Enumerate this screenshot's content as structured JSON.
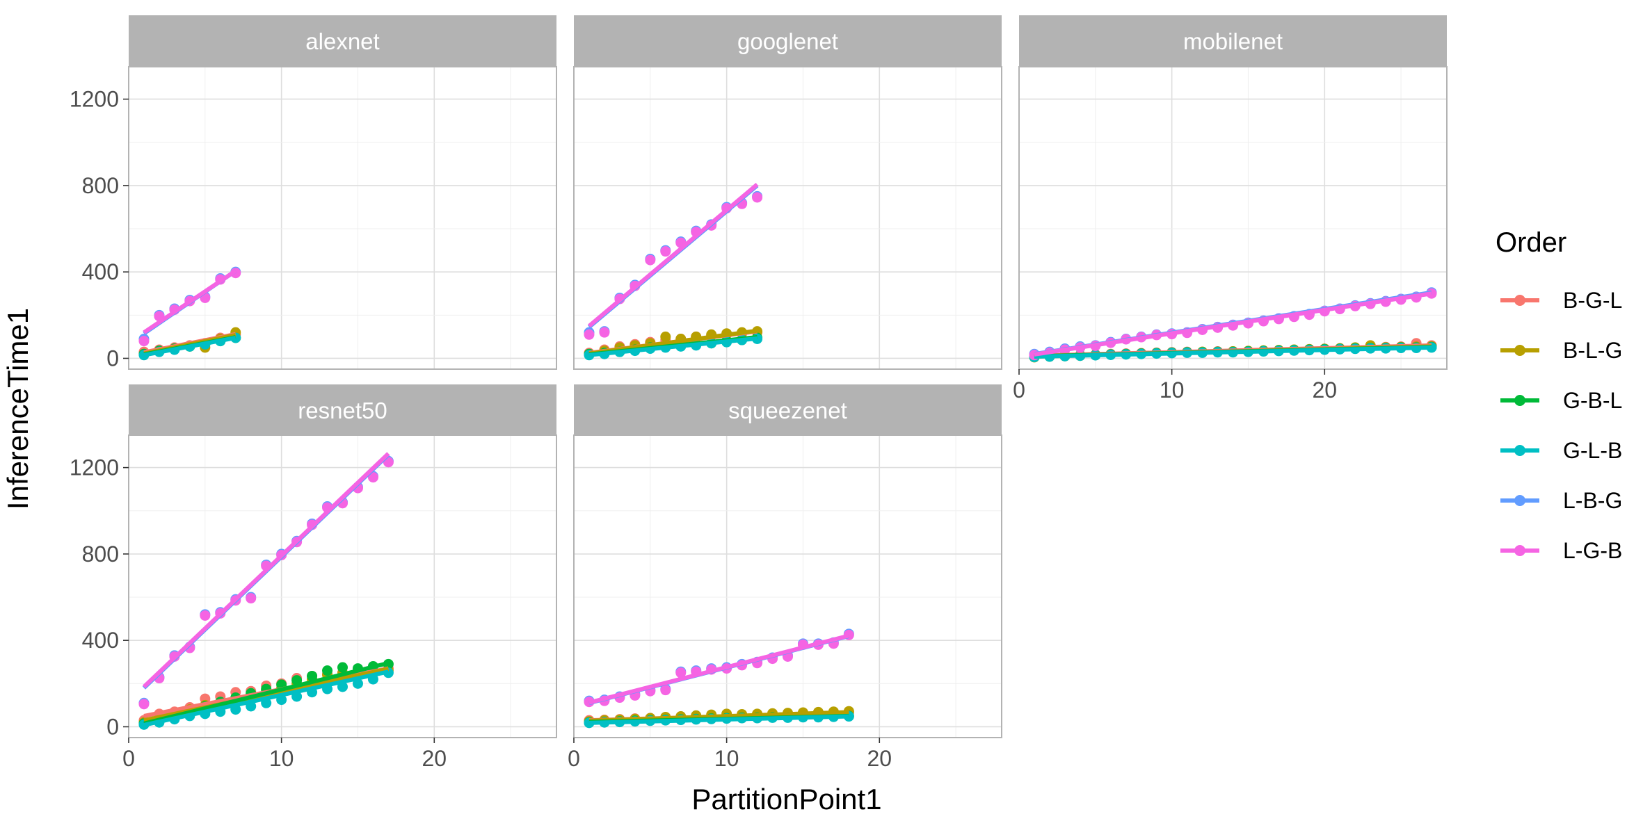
{
  "chart_data": {
    "type": "scatter",
    "facet_by": "model",
    "xlabel": "PartitionPoint1",
    "ylabel": "InferenceTime1",
    "xlim": [
      0,
      28
    ],
    "ylim": [
      -50,
      1350
    ],
    "x_ticks": [
      0,
      10,
      20
    ],
    "y_ticks": [
      0,
      400,
      800,
      1200
    ],
    "grid": true,
    "legend": {
      "title": "Order",
      "placement": "right",
      "entries": [
        "B-G-L",
        "B-L-G",
        "G-B-L",
        "G-L-B",
        "L-B-G",
        "L-G-B"
      ]
    },
    "colors": {
      "B-G-L": "#F8766D",
      "B-L-G": "#B79F00",
      "G-B-L": "#00BA38",
      "G-L-B": "#00BFC4",
      "L-B-G": "#619CFF",
      "L-G-B": "#F564E3"
    },
    "panels": [
      {
        "title": "alexnet",
        "x": [
          1,
          2,
          3,
          4,
          5,
          6,
          7
        ],
        "series": [
          {
            "name": "B-G-L",
            "values": [
              30,
              40,
              50,
              60,
              70,
              95,
              110
            ],
            "fit": [
              [
                1,
                28
              ],
              [
                7,
                112
              ]
            ]
          },
          {
            "name": "B-L-G",
            "values": [
              20,
              35,
              45,
              55,
              50,
              90,
              120
            ],
            "fit": [
              [
                1,
                22
              ],
              [
                7,
                108
              ]
            ]
          },
          {
            "name": "G-B-L",
            "values": [
              20,
              35,
              45,
              55,
              65,
              80,
              95
            ],
            "fit": [
              [
                1,
                18
              ],
              [
                7,
                98
              ]
            ]
          },
          {
            "name": "G-L-B",
            "values": [
              15,
              30,
              40,
              55,
              65,
              80,
              95
            ],
            "fit": [
              [
                1,
                15
              ],
              [
                7,
                95
              ]
            ]
          },
          {
            "name": "L-B-G",
            "values": [
              90,
              200,
              230,
              270,
              285,
              370,
              400
            ],
            "fit": [
              [
                1,
                115
              ],
              [
                7,
                405
              ]
            ]
          },
          {
            "name": "L-G-B",
            "values": [
              80,
              195,
              225,
              265,
              280,
              365,
              395
            ],
            "fit": [
              [
                1,
                120
              ],
              [
                7,
                405
              ]
            ]
          }
        ]
      },
      {
        "title": "googlenet",
        "x": [
          1,
          2,
          3,
          4,
          5,
          6,
          7,
          8,
          9,
          10,
          11,
          12
        ],
        "series": [
          {
            "name": "B-G-L",
            "values": [
              25,
              40,
              55,
              65,
              75,
              85,
              90,
              100,
              105,
              110,
              115,
              120
            ],
            "fit": [
              [
                1,
                25
              ],
              [
                12,
                125
              ]
            ]
          },
          {
            "name": "B-L-G",
            "values": [
              20,
              35,
              50,
              60,
              70,
              100,
              90,
              100,
              110,
              115,
              120,
              125
            ],
            "fit": [
              [
                1,
                22
              ],
              [
                12,
                128
              ]
            ]
          },
          {
            "name": "G-B-L",
            "values": [
              20,
              25,
              30,
              40,
              50,
              55,
              60,
              65,
              70,
              80,
              85,
              95
            ],
            "fit": [
              [
                1,
                18
              ],
              [
                12,
                98
              ]
            ]
          },
          {
            "name": "G-L-B",
            "values": [
              15,
              20,
              30,
              35,
              45,
              50,
              55,
              60,
              70,
              75,
              85,
              90
            ],
            "fit": [
              [
                1,
                15
              ],
              [
                12,
                92
              ]
            ]
          },
          {
            "name": "L-B-G",
            "values": [
              120,
              125,
              280,
              340,
              460,
              500,
              540,
              590,
              620,
              700,
              720,
              750
            ],
            "fit": [
              [
                1,
                145
              ],
              [
                12,
                800
              ]
            ]
          },
          {
            "name": "L-G-B",
            "values": [
              110,
              120,
              275,
              335,
              455,
              495,
              535,
              585,
              615,
              695,
              715,
              745
            ],
            "fit": [
              [
                1,
                150
              ],
              [
                12,
                805
              ]
            ]
          }
        ]
      },
      {
        "title": "mobilenet",
        "x": [
          1,
          2,
          3,
          4,
          5,
          6,
          7,
          8,
          9,
          10,
          11,
          12,
          13,
          14,
          15,
          16,
          17,
          18,
          19,
          20,
          21,
          22,
          23,
          24,
          25,
          26,
          27
        ],
        "series": [
          {
            "name": "B-G-L",
            "values": [
              10,
              12,
              14,
              16,
              18,
              20,
              22,
              24,
              26,
              28,
              30,
              30,
              32,
              32,
              34,
              36,
              38,
              40,
              42,
              44,
              46,
              48,
              50,
              52,
              54,
              70,
              60
            ],
            "fit": [
              [
                1,
                12
              ],
              [
                27,
                60
              ]
            ]
          },
          {
            "name": "B-L-G",
            "values": [
              5,
              8,
              10,
              12,
              15,
              18,
              20,
              22,
              24,
              26,
              28,
              30,
              30,
              32,
              34,
              36,
              38,
              40,
              42,
              44,
              46,
              50,
              60,
              50,
              52,
              54,
              55
            ],
            "fit": [
              [
                1,
                8
              ],
              [
                27,
                55
              ]
            ]
          },
          {
            "name": "G-B-L",
            "values": [
              8,
              10,
              12,
              14,
              16,
              18,
              20,
              22,
              24,
              26,
              28,
              28,
              30,
              30,
              32,
              34,
              36,
              38,
              40,
              42,
              44,
              46,
              48,
              48,
              50,
              50,
              52
            ],
            "fit": [
              [
                1,
                10
              ],
              [
                27,
                52
              ]
            ]
          },
          {
            "name": "G-L-B",
            "values": [
              6,
              8,
              10,
              12,
              14,
              16,
              18,
              20,
              22,
              24,
              26,
              26,
              28,
              28,
              30,
              32,
              34,
              36,
              38,
              40,
              42,
              44,
              46,
              46,
              48,
              48,
              50
            ],
            "fit": [
              [
                1,
                8
              ],
              [
                27,
                50
              ]
            ]
          },
          {
            "name": "L-B-G",
            "values": [
              20,
              30,
              45,
              55,
              60,
              75,
              90,
              100,
              110,
              115,
              120,
              135,
              145,
              155,
              165,
              175,
              185,
              195,
              205,
              220,
              230,
              245,
              255,
              265,
              275,
              285,
              305
            ],
            "fit": [
              [
                1,
                20
              ],
              [
                27,
                305
              ]
            ]
          },
          {
            "name": "L-G-B",
            "values": [
              15,
              25,
              40,
              50,
              58,
              72,
              88,
              98,
              108,
              112,
              118,
              132,
              142,
              152,
              162,
              172,
              182,
              192,
              202,
              218,
              228,
              242,
              252,
              262,
              272,
              282,
              300
            ],
            "fit": [
              [
                1,
                18
              ],
              [
                27,
                300
              ]
            ]
          }
        ]
      },
      {
        "title": "resnet50",
        "x": [
          1,
          2,
          3,
          4,
          5,
          6,
          7,
          8,
          9,
          10,
          11,
          12,
          13,
          14,
          15,
          16,
          17
        ],
        "series": [
          {
            "name": "B-G-L",
            "values": [
              30,
              60,
              70,
              90,
              130,
              140,
              160,
              165,
              190,
              200,
              225,
              235,
              245,
              250,
              245,
              260,
              270
            ],
            "fit": [
              [
                1,
                50
              ],
              [
                17,
                270
              ]
            ]
          },
          {
            "name": "B-L-G",
            "values": [
              20,
              40,
              60,
              80,
              100,
              110,
              130,
              150,
              170,
              180,
              200,
              220,
              240,
              250,
              240,
              255,
              260
            ],
            "fit": [
              [
                1,
                30
              ],
              [
                17,
                268
              ]
            ]
          },
          {
            "name": "G-B-L",
            "values": [
              15,
              35,
              55,
              75,
              95,
              115,
              135,
              155,
              175,
              195,
              215,
              235,
              260,
              275,
              270,
              280,
              290
            ],
            "fit": [
              [
                1,
                15
              ],
              [
                17,
                295
              ]
            ]
          },
          {
            "name": "G-L-B",
            "values": [
              10,
              20,
              35,
              50,
              60,
              70,
              80,
              95,
              110,
              125,
              140,
              160,
              175,
              185,
              200,
              220,
              250
            ],
            "fit": [
              [
                1,
                8
              ],
              [
                17,
                255
              ]
            ]
          },
          {
            "name": "L-B-G",
            "values": [
              110,
              230,
              330,
              370,
              520,
              530,
              590,
              600,
              750,
              800,
              860,
              940,
              1020,
              1040,
              1110,
              1160,
              1230
            ],
            "fit": [
              [
                1,
                180
              ],
              [
                17,
                1260
              ]
            ]
          },
          {
            "name": "L-G-B",
            "values": [
              105,
              225,
              325,
              365,
              515,
              525,
              585,
              595,
              745,
              795,
              855,
              935,
              1015,
              1035,
              1105,
              1155,
              1225
            ],
            "fit": [
              [
                1,
                185
              ],
              [
                17,
                1265
              ]
            ]
          }
        ]
      },
      {
        "title": "squeezenet",
        "x": [
          1,
          2,
          3,
          4,
          5,
          6,
          7,
          8,
          9,
          10,
          11,
          12,
          13,
          14,
          15,
          16,
          17,
          18
        ],
        "series": [
          {
            "name": "B-G-L",
            "values": [
              30,
              32,
              35,
              38,
              40,
              42,
              44,
              46,
              48,
              50,
              52,
              54,
              56,
              58,
              60,
              62,
              64,
              66
            ],
            "fit": [
              [
                1,
                30
              ],
              [
                18,
                65
              ]
            ]
          },
          {
            "name": "B-L-G",
            "values": [
              25,
              30,
              33,
              36,
              40,
              45,
              48,
              52,
              56,
              60,
              58,
              60,
              62,
              64,
              66,
              68,
              70,
              72
            ],
            "fit": [
              [
                1,
                28
              ],
              [
                18,
                68
              ]
            ]
          },
          {
            "name": "G-B-L",
            "values": [
              20,
              22,
              25,
              28,
              30,
              32,
              34,
              36,
              38,
              40,
              42,
              42,
              44,
              44,
              46,
              46,
              48,
              50
            ],
            "fit": [
              [
                1,
                22
              ],
              [
                18,
                50
              ]
            ]
          },
          {
            "name": "G-L-B",
            "values": [
              18,
              20,
              22,
              25,
              28,
              30,
              32,
              34,
              36,
              38,
              40,
              40,
              42,
              42,
              44,
              44,
              46,
              48
            ],
            "fit": [
              [
                1,
                18
              ],
              [
                18,
                48
              ]
            ]
          },
          {
            "name": "L-B-G",
            "values": [
              120,
              125,
              140,
              150,
              170,
              175,
              255,
              260,
              270,
              275,
              290,
              300,
              320,
              330,
              385,
              385,
              390,
              430
            ],
            "fit": [
              [
                1,
                110
              ],
              [
                18,
                420
              ]
            ]
          },
          {
            "name": "L-G-B",
            "values": [
              115,
              120,
              135,
              145,
              165,
              170,
              250,
              255,
              265,
              270,
              285,
              295,
              315,
              325,
              380,
              380,
              385,
              425
            ],
            "fit": [
              [
                1,
                112
              ],
              [
                18,
                422
              ]
            ]
          }
        ]
      }
    ]
  }
}
